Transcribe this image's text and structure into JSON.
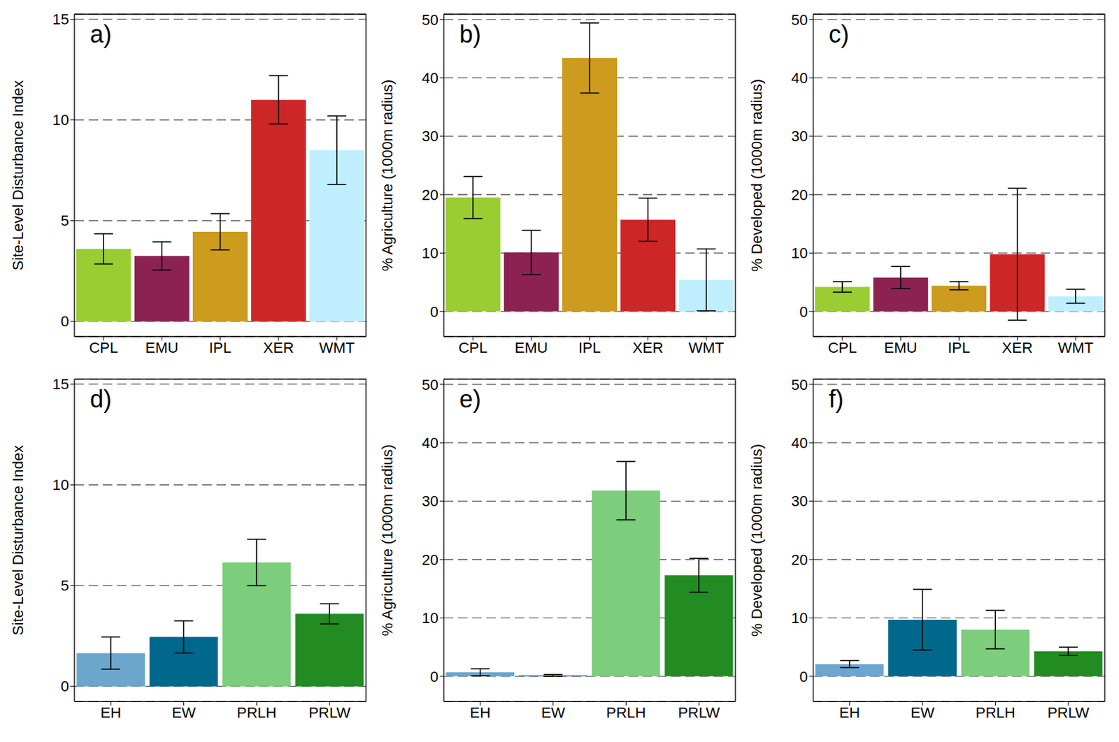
{
  "chart_data": [
    {
      "type": "bar",
      "title": "a)",
      "y_label": "Site-Level Disturbance Index",
      "categories": [
        "CPL",
        "EMU",
        "IPL",
        "XER",
        "WMT"
      ],
      "values": [
        3.6,
        3.25,
        4.45,
        11.0,
        8.5
      ],
      "errors": [
        0.75,
        0.7,
        0.9,
        1.2,
        1.7
      ],
      "colors": [
        "#9ACD32",
        "#8B2252",
        "#CD9B1D",
        "#CD2626",
        "#BFEFFF"
      ],
      "ylim": [
        -0.75,
        15.25
      ],
      "yticks": [
        0,
        5,
        10,
        15
      ],
      "grid": true
    },
    {
      "type": "bar",
      "title": "b)",
      "y_label": "% Agriculture (1000m radius)",
      "categories": [
        "CPL",
        "EMU",
        "IPL",
        "XER",
        "WMT"
      ],
      "values": [
        19.5,
        10.1,
        43.4,
        15.7,
        5.4
      ],
      "errors": [
        3.6,
        3.8,
        6.0,
        3.7,
        5.3
      ],
      "colors": [
        "#9ACD32",
        "#8B2252",
        "#CD9B1D",
        "#CD2626",
        "#BFEFFF"
      ],
      "ylim": [
        -4.3,
        50.9
      ],
      "yticks": [
        0,
        10,
        20,
        30,
        40,
        50
      ],
      "grid": true
    },
    {
      "type": "bar",
      "title": "c)",
      "y_label": "% Developed (1000m radius)",
      "categories": [
        "CPL",
        "EMU",
        "IPL",
        "XER",
        "WMT"
      ],
      "values": [
        4.2,
        5.8,
        4.4,
        9.8,
        2.6
      ],
      "errors": [
        0.9,
        1.9,
        0.7,
        11.3,
        1.2
      ],
      "colors": [
        "#9ACD32",
        "#8B2252",
        "#CD9B1D",
        "#CD2626",
        "#BFEFFF"
      ],
      "ylim": [
        -4.3,
        50.9
      ],
      "yticks": [
        0,
        10,
        20,
        30,
        40,
        50
      ],
      "grid": true
    },
    {
      "type": "bar",
      "title": "d)",
      "y_label": "Site-Level Disturbance Index",
      "categories": [
        "EH",
        "EW",
        "PRLH",
        "PRLW"
      ],
      "values": [
        1.65,
        2.45,
        6.15,
        3.6
      ],
      "errors": [
        0.8,
        0.8,
        1.15,
        0.5
      ],
      "colors": [
        "#6CA6CD",
        "#00688B",
        "#7CCD7C",
        "#228B22"
      ],
      "ylim": [
        -0.75,
        15.25
      ],
      "yticks": [
        0,
        5,
        10,
        15
      ],
      "grid": true
    },
    {
      "type": "bar",
      "title": "e)",
      "y_label": "% Agriculture (1000m radius)",
      "categories": [
        "EH",
        "EW",
        "PRLH",
        "PRLW"
      ],
      "values": [
        0.7,
        0.15,
        31.8,
        17.3
      ],
      "errors": [
        0.6,
        0.15,
        5.0,
        2.9
      ],
      "colors": [
        "#6CA6CD",
        "#00688B",
        "#7CCD7C",
        "#228B22"
      ],
      "ylim": [
        -4.3,
        50.9
      ],
      "yticks": [
        0,
        10,
        20,
        30,
        40,
        50
      ],
      "grid": true
    },
    {
      "type": "bar",
      "title": "f)",
      "y_label": "% Developed (1000m radius)",
      "categories": [
        "EH",
        "EW",
        "PRLH",
        "PRLW"
      ],
      "values": [
        2.1,
        9.7,
        8.0,
        4.3
      ],
      "errors": [
        0.6,
        5.2,
        3.3,
        0.7
      ],
      "colors": [
        "#6CA6CD",
        "#00688B",
        "#7CCD7C",
        "#228B22"
      ],
      "ylim": [
        -4.3,
        50.9
      ],
      "yticks": [
        0,
        10,
        20,
        30,
        40,
        50
      ],
      "grid": true
    }
  ]
}
